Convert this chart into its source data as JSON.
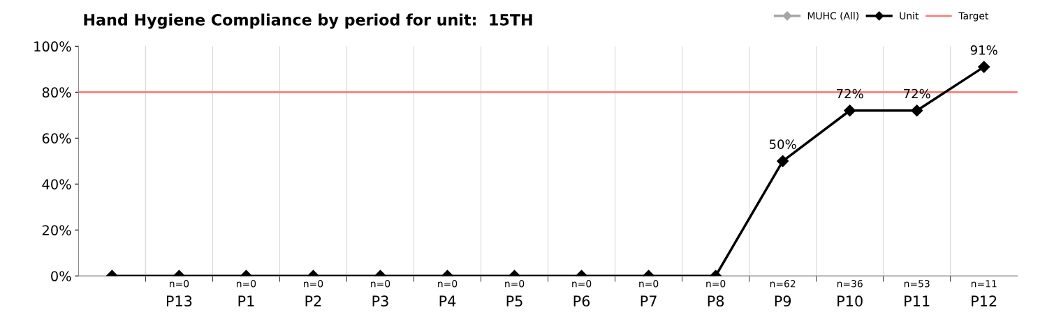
{
  "chart_data": {
    "type": "line",
    "title": "Hand Hygiene Compliance by period for unit:  15TH",
    "categories": [
      null,
      "P13",
      "P1",
      "P2",
      "P3",
      "P4",
      "P5",
      "P6",
      "P7",
      "P8",
      "P9",
      "P10",
      "P11",
      "P12"
    ],
    "series": [
      {
        "name": "MUHC (All)",
        "color": "#a6a6a6",
        "values": [
          null,
          null,
          null,
          null,
          null,
          null,
          null,
          null,
          null,
          null,
          null,
          null,
          null,
          null
        ]
      },
      {
        "name": "Unit",
        "color": "#000000",
        "values": [
          0,
          0,
          0,
          0,
          0,
          0,
          0,
          0,
          0,
          0,
          50,
          72,
          72,
          91
        ],
        "value_labels": [
          null,
          null,
          null,
          null,
          null,
          null,
          null,
          null,
          null,
          null,
          "50%",
          "72%",
          "72%",
          "91%"
        ]
      }
    ],
    "ref_lines": [
      {
        "axis": "y",
        "value": 80,
        "label": "Target",
        "color": "#f4827a"
      }
    ],
    "ylim": [
      0,
      100
    ],
    "yticks": [
      {
        "value": 0,
        "label": "0%"
      },
      {
        "value": 20,
        "label": "20%"
      },
      {
        "value": 40,
        "label": "40%"
      },
      {
        "value": 60,
        "label": "60%"
      },
      {
        "value": 80,
        "label": "80%"
      },
      {
        "value": 100,
        "label": "100%"
      }
    ],
    "marker": "diamond",
    "grid": "x",
    "legend": "top right",
    "annotations": [
      "n=0",
      "n=0",
      "n=0",
      "n=0",
      "n=0",
      "n=0",
      "n=0",
      "n=0",
      "n=0",
      "n=62",
      "n=36",
      "n=53",
      "n=11"
    ]
  }
}
